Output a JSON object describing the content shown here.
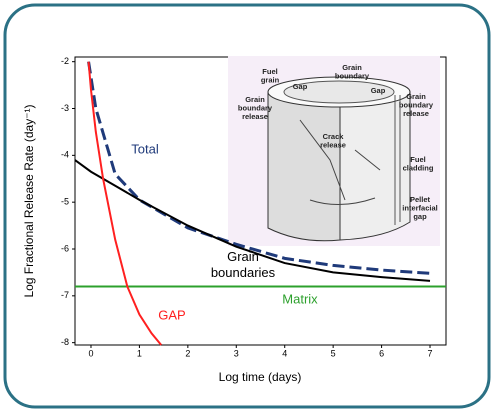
{
  "chart_data": {
    "type": "line",
    "xlabel": "Log time (days)",
    "ylabel": "Log Fractional Release Rate (day⁻¹)",
    "xlim": [
      -0.33,
      7.33
    ],
    "ylim": [
      -8.05,
      -1.9
    ],
    "xticks": [
      0,
      1,
      2,
      3,
      4,
      5,
      6,
      7
    ],
    "yticks": [
      -2,
      -3,
      -4,
      -5,
      -6,
      -7,
      -8
    ],
    "series": [
      {
        "name": "Total",
        "color": "#1f3a7a",
        "style": "dashed",
        "x": [
          -0.05,
          0.1,
          0.5,
          1,
          2,
          3,
          4,
          5,
          6,
          7
        ],
        "values": [
          -2,
          -3,
          -4.4,
          -4.95,
          -5.55,
          -5.9,
          -6.2,
          -6.35,
          -6.45,
          -6.52
        ]
      },
      {
        "name": "Grain boundaries",
        "color": "#000000",
        "style": "solid",
        "x": [
          -0.33,
          0,
          0.5,
          1,
          2,
          3,
          4,
          5,
          6,
          7
        ],
        "values": [
          -4.1,
          -4.35,
          -4.65,
          -4.95,
          -5.5,
          -5.95,
          -6.3,
          -6.5,
          -6.6,
          -6.68
        ]
      },
      {
        "name": "Matrix",
        "color": "#2ca02c",
        "style": "solid",
        "x": [
          -0.33,
          7.33
        ],
        "values": [
          -6.8,
          -6.8
        ]
      },
      {
        "name": "GAP",
        "color": "#ff2020",
        "style": "solid",
        "x": [
          -0.05,
          0,
          0.1,
          0.25,
          0.5,
          0.75,
          1,
          1.25,
          1.45
        ],
        "values": [
          -2,
          -2.6,
          -3.5,
          -4.5,
          -5.8,
          -6.8,
          -7.4,
          -7.8,
          -8.05
        ]
      }
    ]
  },
  "inset": {
    "labels": [
      {
        "lines": [
          "Fuel",
          "grain"
        ]
      },
      {
        "lines": [
          "Gap"
        ]
      },
      {
        "lines": [
          "Grain",
          "boundary"
        ]
      },
      {
        "lines": [
          "Gap"
        ]
      },
      {
        "lines": [
          "Grain",
          "boundary",
          "release"
        ]
      },
      {
        "lines": [
          "Grain",
          "boundary",
          "release"
        ]
      },
      {
        "lines": [
          "Crack",
          "release"
        ]
      },
      {
        "lines": [
          "Fuel",
          "cladding"
        ]
      },
      {
        "lines": [
          "Pellet",
          "interfacial",
          "gap"
        ]
      }
    ]
  }
}
